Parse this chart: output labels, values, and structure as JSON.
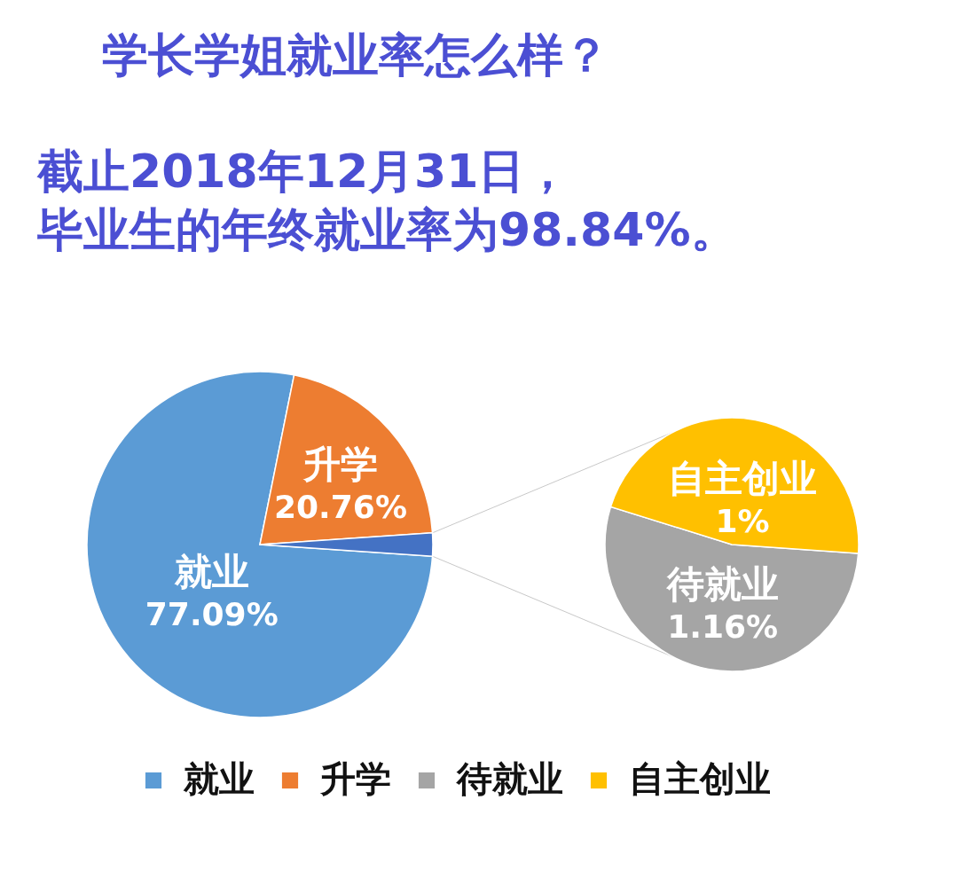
{
  "chart_data": [
    {
      "type": "pie",
      "title": "学长学姐就业率怎么样？",
      "subtitle": "截止2018年12月31日，毕业生的年终就业率为98.84%。",
      "categories": [
        "就业",
        "升学",
        null
      ],
      "values": [
        77.09,
        20.76,
        2.15
      ],
      "colors": [
        "#5b9bd5",
        "#ed7d31",
        "#4472c4"
      ],
      "value_labels": [
        "77.09%",
        "20.76%",
        null
      ],
      "legend": "bottom"
    },
    {
      "type": "pie",
      "categories": [
        "待就业",
        "自主创业"
      ],
      "values": [
        1.16,
        1
      ],
      "colors": [
        "#a5a5a5",
        "#ffc000"
      ],
      "value_labels": [
        "1.16%",
        "1%"
      ],
      "legend": "bottom"
    }
  ]
}
